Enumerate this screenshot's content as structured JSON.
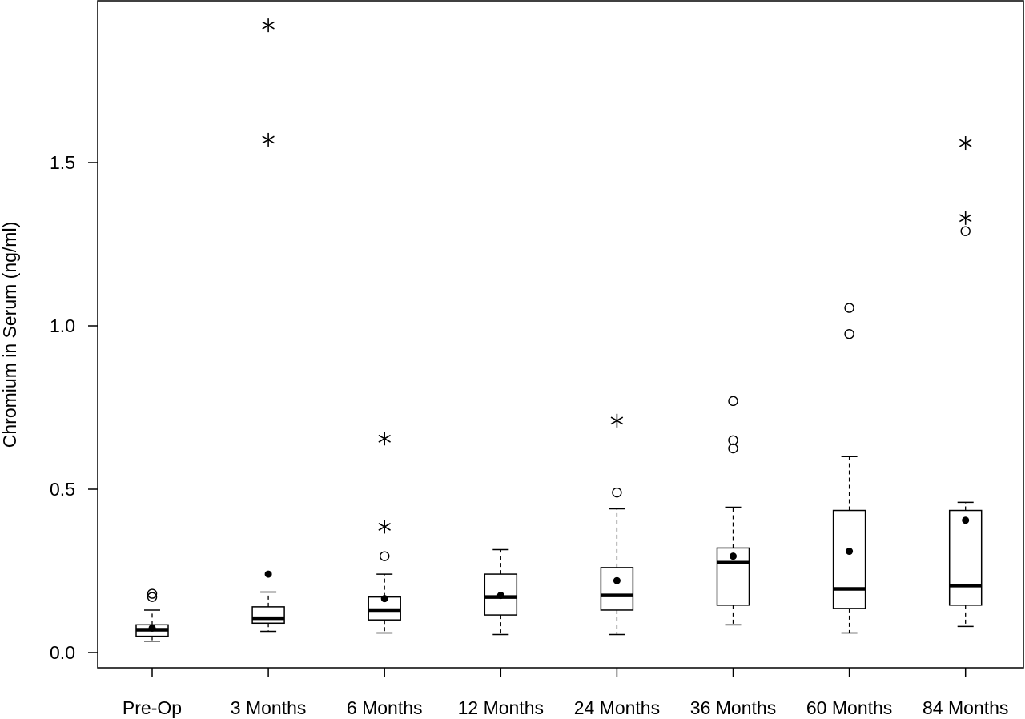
{
  "chart_data": {
    "type": "boxplot",
    "title": "",
    "xlabel": "",
    "ylabel": "Chromium in Serum (ng/ml)",
    "ylim": [
      -0.05,
      2.0
    ],
    "yticks": [
      "0.0",
      "0.5",
      "1.0",
      "1.5"
    ],
    "ytick_values": [
      0.0,
      0.5,
      1.0,
      1.5
    ],
    "grid": false,
    "legend": "none",
    "categories": [
      "Pre-Op",
      "3 Months",
      "6 Months",
      "12 Months",
      "24 Months",
      "36 Months",
      "60 Months",
      "84 Months"
    ],
    "boxes": [
      {
        "category": "Pre-Op",
        "whisker_low": 0.035,
        "q1": 0.05,
        "median": 0.07,
        "q3": 0.085,
        "whisker_high": 0.13,
        "mean": 0.075,
        "outliers": [
          0.17,
          0.18
        ],
        "extremes": []
      },
      {
        "category": "3 Months",
        "whisker_low": 0.065,
        "q1": 0.09,
        "median": 0.105,
        "q3": 0.14,
        "whisker_high": 0.185,
        "mean": 0.24,
        "outliers": [],
        "extremes": [
          1.57,
          1.92
        ]
      },
      {
        "category": "6 Months",
        "whisker_low": 0.06,
        "q1": 0.1,
        "median": 0.13,
        "q3": 0.17,
        "whisker_high": 0.24,
        "mean": 0.165,
        "outliers": [
          0.295
        ],
        "extremes": [
          0.385,
          0.655
        ]
      },
      {
        "category": "12 Months",
        "whisker_low": 0.055,
        "q1": 0.115,
        "median": 0.17,
        "q3": 0.24,
        "whisker_high": 0.315,
        "mean": 0.175,
        "outliers": [],
        "extremes": []
      },
      {
        "category": "24 Months",
        "whisker_low": 0.055,
        "q1": 0.13,
        "median": 0.175,
        "q3": 0.26,
        "whisker_high": 0.44,
        "mean": 0.22,
        "outliers": [
          0.49
        ],
        "extremes": [
          0.71
        ]
      },
      {
        "category": "36 Months",
        "whisker_low": 0.085,
        "q1": 0.145,
        "median": 0.275,
        "q3": 0.32,
        "whisker_high": 0.445,
        "mean": 0.295,
        "outliers": [
          0.625,
          0.65,
          0.77
        ],
        "extremes": []
      },
      {
        "category": "60 Months",
        "whisker_low": 0.06,
        "q1": 0.135,
        "median": 0.195,
        "q3": 0.435,
        "whisker_high": 0.6,
        "mean": 0.31,
        "outliers": [
          0.975,
          1.055
        ],
        "extremes": []
      },
      {
        "category": "84 Months",
        "whisker_low": 0.08,
        "q1": 0.145,
        "median": 0.205,
        "q3": 0.435,
        "whisker_high": 0.46,
        "mean": 0.405,
        "outliers": [
          1.29
        ],
        "extremes": [
          1.33,
          1.56
        ]
      }
    ]
  }
}
